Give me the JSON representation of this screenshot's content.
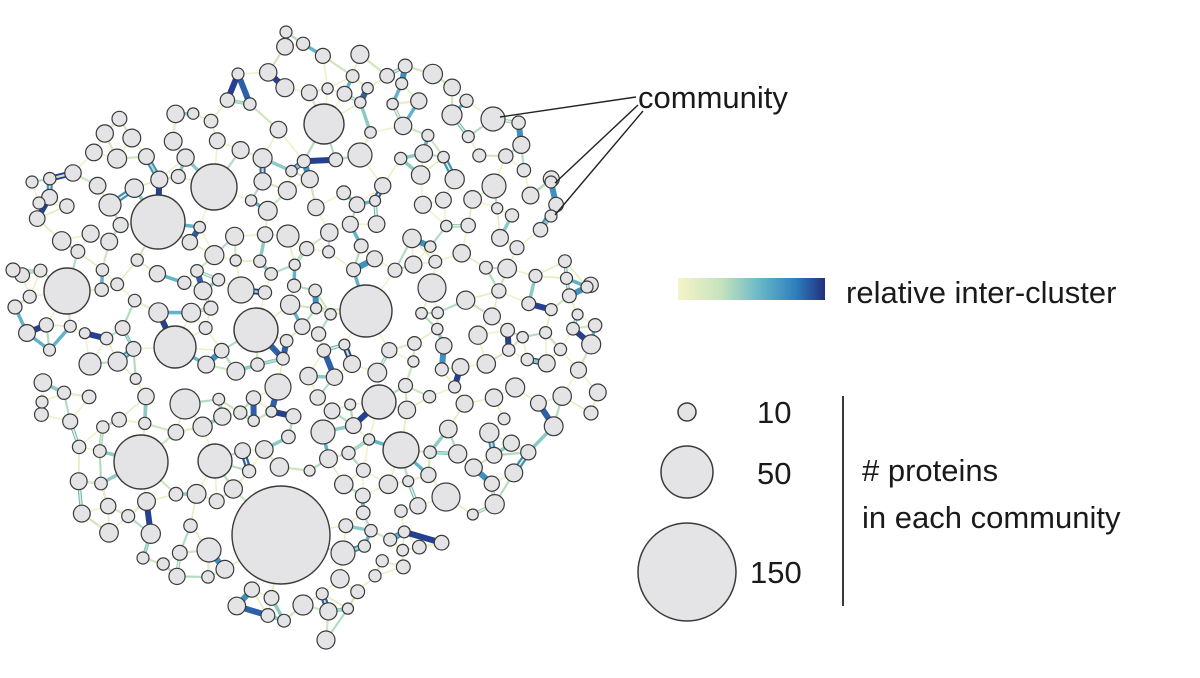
{
  "annotation": {
    "label": "community"
  },
  "color_legend": {
    "label": "relative inter-cluster",
    "gradient": [
      "#f7f4c8",
      "#c4e2bd",
      "#69b9c8",
      "#2e7fbc",
      "#20307f"
    ]
  },
  "size_legend": {
    "entries": [
      {
        "label": "10",
        "proteins": 10
      },
      {
        "label": "50",
        "proteins": 50
      },
      {
        "label": "150",
        "proteins": 150
      }
    ],
    "title_line1": "# proteins",
    "title_line2": "in each community"
  },
  "colors": {
    "node_fill": "#e4e4e6",
    "node_stroke": "#3a3a3a",
    "edge_low": "#f0f0c8",
    "edge_mid": "#8fcbc6",
    "edge_high": "#2a3f94"
  }
}
